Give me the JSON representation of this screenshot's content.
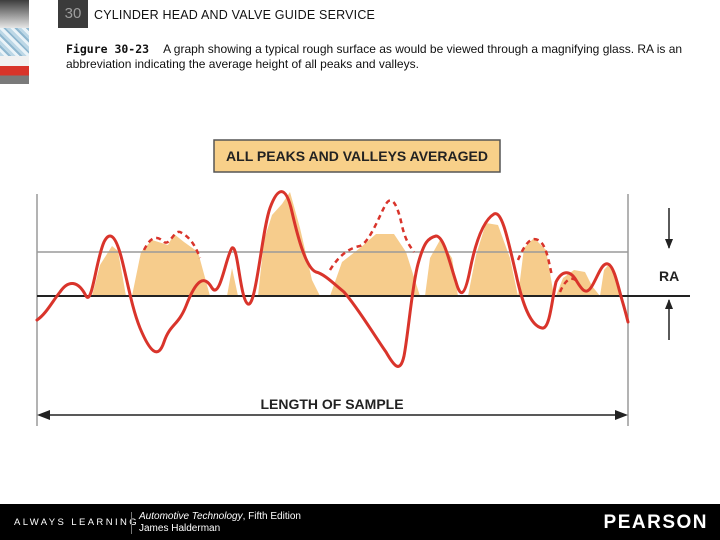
{
  "header": {
    "chapter_number": "30",
    "chapter_title": "CYLINDER HEAD AND VALVE GUIDE SERVICE"
  },
  "caption": {
    "figure_label": "Figure 30-23",
    "text": "A graph showing a typical rough surface as would be viewed through a magnifying glass. RA is an abbreviation indicating the average height of all peaks and valleys."
  },
  "diagram": {
    "title": "ALL PEAKS AND VALLEYS AVERAGED",
    "ra_label": "RA",
    "length_label": "LENGTH OF SAMPLE",
    "colors": {
      "profile": "#d9342b",
      "fill": "#f6cc8c",
      "title_bg": "#f8d089",
      "guide_line": "#9a9a9a"
    }
  },
  "footer": {
    "tagline": "ALWAYS LEARNING",
    "book_title": "Automotive Technology",
    "book_edition": ", Fifth Edition",
    "author": "James Halderman",
    "publisher": "PEARSON"
  }
}
